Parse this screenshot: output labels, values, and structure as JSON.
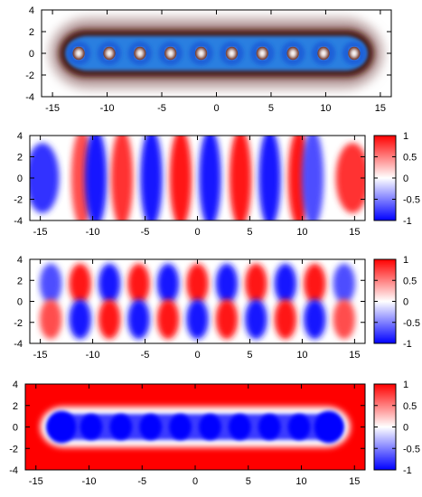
{
  "chart_data": [
    {
      "type": "heatmap",
      "panel": "density",
      "title": "",
      "xlabel": "",
      "ylabel": "",
      "xlim": [
        -16,
        16
      ],
      "ylim": [
        -4,
        4
      ],
      "x_ticks": [
        "-15",
        "-10",
        "-5",
        "0",
        "5",
        "10",
        "15"
      ],
      "y_ticks": [
        "4",
        "2",
        "0",
        "-2",
        "-4"
      ],
      "colorbar": null,
      "structure": "chain of 10 nuclear cores along y=0 at x ≈ -12.5..12.5 (spacing ~2.8), brown halo, blue bonding regions between cores",
      "core_x": [
        -12.6,
        -9.8,
        -7.0,
        -4.2,
        -1.4,
        1.4,
        4.2,
        7.0,
        9.8,
        12.6
      ]
    },
    {
      "type": "heatmap",
      "panel": "orbital-even",
      "title": "",
      "xlabel": "",
      "ylabel": "",
      "xlim": [
        -16,
        16
      ],
      "ylim": [
        -4,
        4
      ],
      "x_ticks": [
        "-15",
        "-10",
        "-5",
        "0",
        "5",
        "10",
        "15"
      ],
      "y_ticks": [
        "4",
        "2",
        "0",
        "-2",
        "-4"
      ],
      "colorbar": {
        "ticks": [
          "1",
          "0.5",
          "0",
          "-0.5",
          "-1"
        ],
        "min": -1,
        "max": 1,
        "colors": [
          "#0000ff",
          "#ffffff",
          "#ff0000"
        ]
      },
      "structure": "alternating vertical lobes with X-shaped nodes near x = ±13.3",
      "lobes": [
        {
          "x": -14.8,
          "v": -0.8
        },
        {
          "x": -11.0,
          "v": 0.7
        },
        {
          "x": -9.7,
          "v": -0.9
        },
        {
          "x": -7.2,
          "v": 0.8
        },
        {
          "x": -4.4,
          "v": -0.9
        },
        {
          "x": -1.6,
          "v": 0.9
        },
        {
          "x": 1.2,
          "v": -0.9
        },
        {
          "x": 4.1,
          "v": 0.9
        },
        {
          "x": 6.9,
          "v": -0.9
        },
        {
          "x": 9.7,
          "v": 0.9
        },
        {
          "x": 11.0,
          "v": -0.7
        },
        {
          "x": 14.8,
          "v": 0.8
        }
      ]
    },
    {
      "type": "heatmap",
      "panel": "orbital-odd",
      "title": "",
      "xlabel": "",
      "ylabel": "",
      "xlim": [
        -16,
        16
      ],
      "ylim": [
        -4,
        4
      ],
      "x_ticks": [
        "-15",
        "-10",
        "-5",
        "0",
        "5",
        "10",
        "15"
      ],
      "y_ticks": [
        "4",
        "2",
        "0",
        "-2",
        "-4"
      ],
      "colorbar": {
        "ticks": [
          "1",
          "0.5",
          "0",
          "-0.5",
          "-1"
        ],
        "min": -1,
        "max": 1,
        "colors": [
          "#0000ff",
          "#ffffff",
          "#ff0000"
        ]
      },
      "structure": "antisymmetric in y (nodal line at y=0); alternating lobes along x",
      "lobes_upper": [
        {
          "x": -14.0,
          "v": -0.7
        },
        {
          "x": -11.2,
          "v": 0.9
        },
        {
          "x": -8.4,
          "v": -0.9
        },
        {
          "x": -5.6,
          "v": 0.9
        },
        {
          "x": -2.8,
          "v": -0.9
        },
        {
          "x": 0.0,
          "v": 0.9
        },
        {
          "x": 2.8,
          "v": -0.9
        },
        {
          "x": 5.6,
          "v": 0.9
        },
        {
          "x": 8.4,
          "v": -0.9
        },
        {
          "x": 11.2,
          "v": 0.9
        },
        {
          "x": 14.0,
          "v": -0.7
        }
      ]
    },
    {
      "type": "heatmap",
      "panel": "potential",
      "title": "",
      "xlabel": "",
      "ylabel": "",
      "xlim": [
        -16,
        16
      ],
      "ylim": [
        -4,
        4
      ],
      "x_ticks": [
        "-15",
        "-10",
        "-5",
        "0",
        "5",
        "10",
        "15"
      ],
      "y_ticks": [
        "4",
        "2",
        "0",
        "-2",
        "-4"
      ],
      "colorbar": {
        "ticks": [
          "1",
          "0.5",
          "0",
          "-0.5",
          "-1"
        ],
        "min": -1,
        "max": 1,
        "colors": [
          "#0000ff",
          "#ffffff",
          "#ff0000"
        ]
      },
      "structure": "red background (+1), blue chain of wells along y=0 from x ≈ -14 to 14, white boundary",
      "well_x": [
        -12.6,
        -9.8,
        -7.0,
        -4.2,
        -1.4,
        1.4,
        4.2,
        7.0,
        9.8,
        12.6
      ]
    }
  ]
}
